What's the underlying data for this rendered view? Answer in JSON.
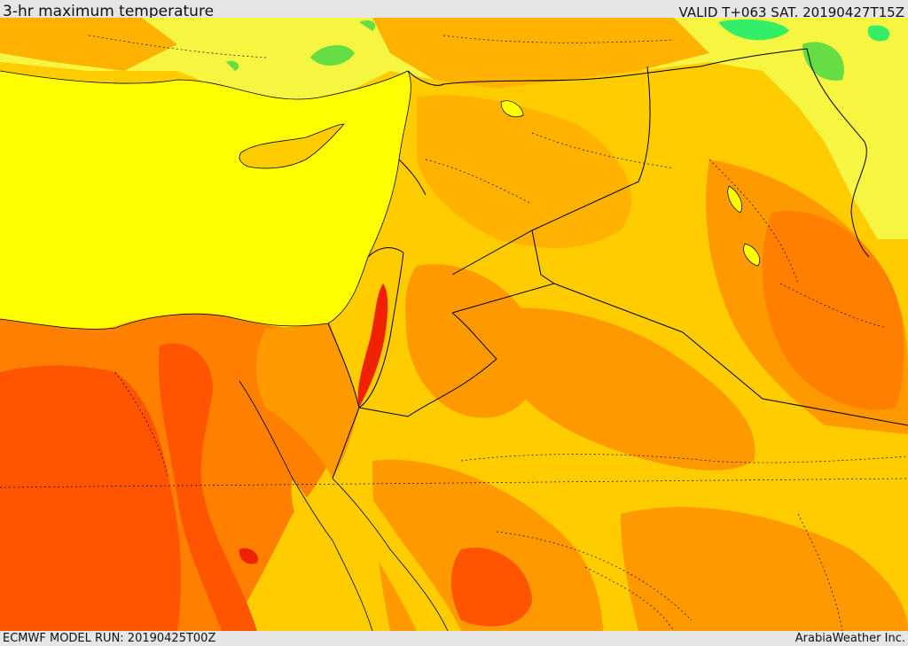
{
  "header": {
    "title": "3-hr maximum temperature",
    "valid_time": "VALID T+063 SAT. 20190427T15Z"
  },
  "footer": {
    "model_run": "ECMWF MODEL RUN: 20190425T00Z",
    "credit": "ArabiaWeather Inc."
  },
  "colors": {
    "sea": "#ffff00",
    "light_yellow": "#f5f542",
    "green": "#66dd44",
    "bright_green": "#33ee66",
    "amber": "#ffcc00",
    "orange_light": "#ffb300",
    "orange": "#ff9900",
    "orange_dark": "#ff7f00",
    "red_orange": "#ff5500",
    "red": "#ee2200",
    "border": "#000000"
  }
}
